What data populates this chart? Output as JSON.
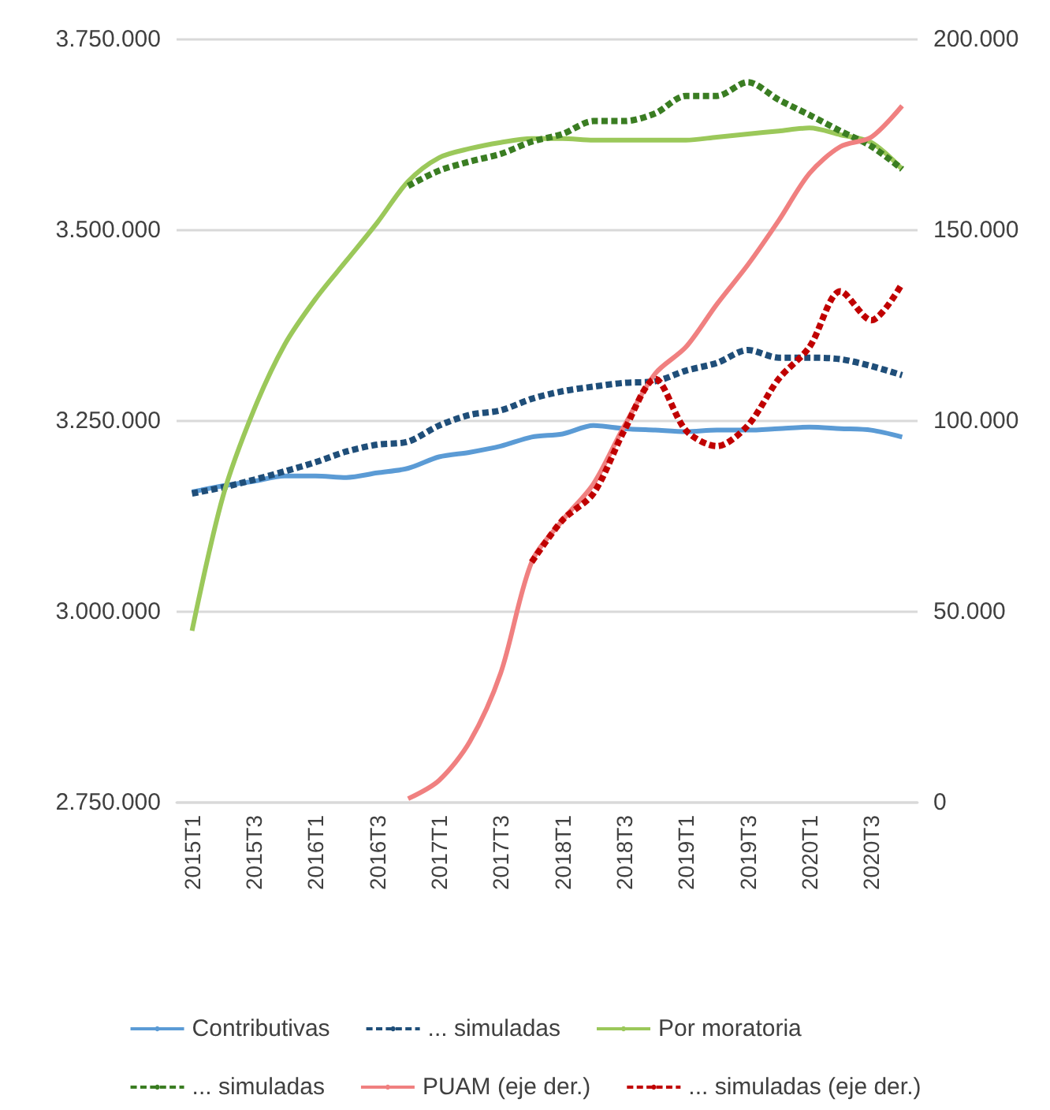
{
  "chart_data": {
    "type": "line",
    "categories": [
      "2015T1",
      null,
      "2015T3",
      null,
      "2016T1",
      null,
      "2016T3",
      null,
      "2017T1",
      null,
      "2017T3",
      null,
      "2018T1",
      null,
      "2018T3",
      null,
      "2019T1",
      null,
      "2019T3",
      null,
      "2020T1",
      null,
      "2020T3",
      null
    ],
    "series": [
      {
        "name": "Contributivas",
        "color": "#5b9bd5",
        "line_style": "solid",
        "values": [
          3157000,
          3165000,
          3171000,
          3178000,
          3178000,
          3176000,
          3182000,
          3188000,
          3203000,
          3209000,
          3217000,
          3229000,
          3233000,
          3244000,
          3240000,
          3238000,
          3236000,
          3238000,
          3238000,
          3240000,
          3242000,
          3240000,
          3238000,
          3229000
        ]
      },
      {
        "name": "... simuladas",
        "color": "#1f4e79",
        "line_style": "dashed",
        "values": [
          3155000,
          3163000,
          3173000,
          3184000,
          3196000,
          3210000,
          3219000,
          3223000,
          3244000,
          3258000,
          3264000,
          3279000,
          3289000,
          3295000,
          3300000,
          3302000,
          3316000,
          3326000,
          3343000,
          3333000,
          3333000,
          3331000,
          3322000,
          3310000
        ]
      },
      {
        "name": "Por moratoria",
        "color": "#9bc85a",
        "line_style": "solid",
        "values": [
          2975000,
          3151000,
          3264000,
          3350000,
          3410000,
          3460000,
          3510000,
          3564000,
          3595000,
          3607000,
          3615000,
          3620000,
          3620000,
          3618000,
          3618000,
          3618000,
          3618000,
          3622000,
          3626000,
          3630000,
          3634000,
          3625000,
          3615000,
          3580000
        ]
      },
      {
        "name": "... simuladas",
        "color": "#3a7d22",
        "line_style": "dashed",
        "values": [
          null,
          null,
          null,
          null,
          null,
          null,
          null,
          3558000,
          3578000,
          3590000,
          3600000,
          3616000,
          3626000,
          3643000,
          3643000,
          3653000,
          3676000,
          3676000,
          3694000,
          3671000,
          3651000,
          3630000,
          3610000,
          3580000
        ]
      },
      {
        "name": "PUAM (eje der.)",
        "color": "#f08080",
        "line_style": "solid",
        "axis": "y2",
        "values": [
          null,
          null,
          null,
          null,
          null,
          null,
          null,
          1000,
          5800,
          16000,
          34000,
          63000,
          74000,
          83500,
          98700,
          112400,
          119400,
          130600,
          140900,
          152500,
          164900,
          171900,
          174400,
          182600
        ]
      },
      {
        "name": "... simuladas (eje der.)",
        "color": "#c00000",
        "line_style": "dashed",
        "axis": "y2",
        "values": [
          null,
          null,
          null,
          null,
          null,
          null,
          null,
          null,
          null,
          null,
          null,
          63000,
          74000,
          81000,
          97500,
          111000,
          97500,
          93400,
          98800,
          111000,
          119400,
          134000,
          126400,
          136000
        ]
      }
    ],
    "ylim": [
      2750000,
      3750000
    ],
    "yticks": [
      {
        "value": 2750000,
        "label": "2.750.000"
      },
      {
        "value": 3000000,
        "label": "3.000.000"
      },
      {
        "value": 3250000,
        "label": "3.250.000"
      },
      {
        "value": 3500000,
        "label": "3.500.000"
      },
      {
        "value": 3750000,
        "label": "3.750.000"
      }
    ],
    "y2lim": [
      0,
      200000
    ],
    "y2ticks": [
      0,
      {
        "value": 50000,
        "label": "50.000"
      },
      {
        "value": 100000,
        "label": "100.000"
      },
      {
        "value": 150000,
        "label": "150.000"
      },
      {
        "value": 200000,
        "label": "200.000"
      }
    ],
    "grid": "y",
    "legend": "bottom",
    "marker": "none"
  }
}
